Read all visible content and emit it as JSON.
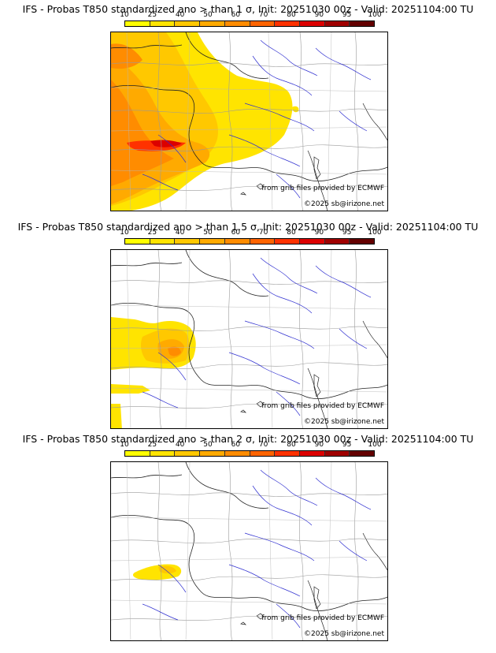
{
  "scale": {
    "labels": [
      "10",
      "25",
      "40",
      "50",
      "60",
      "70",
      "80",
      "90",
      "95",
      "100"
    ],
    "colors": [
      "#ffff00",
      "#ffe400",
      "#ffc800",
      "#ffaa00",
      "#ff8c00",
      "#ff6400",
      "#ff3200",
      "#dc0000",
      "#a00000",
      "#640000"
    ]
  },
  "panels": [
    {
      "title": "IFS - Probas T850  standardized ano > than 1 σ, Init: 20251030 00z - Valid: 20251104:00 TU",
      "source_credit": "from grib files provided by ECMWF",
      "copyright": "©2025 sb@irizone.net"
    },
    {
      "title": "IFS - Probas T850  standardized ano > than 1.5 σ, Init: 20251030 00z - Valid: 20251104:00 TU",
      "source_credit": "from grib files provided by ECMWF",
      "copyright": "©2025 sb@irizone.net"
    },
    {
      "title": "IFS - Probas T850  standardized ano > than 2 σ, Init: 20251030 00z - Valid: 20251104:00 TU",
      "source_credit": "from grib files provided by ECMWF",
      "copyright": "©2025 sb@irizone.net"
    }
  ]
}
